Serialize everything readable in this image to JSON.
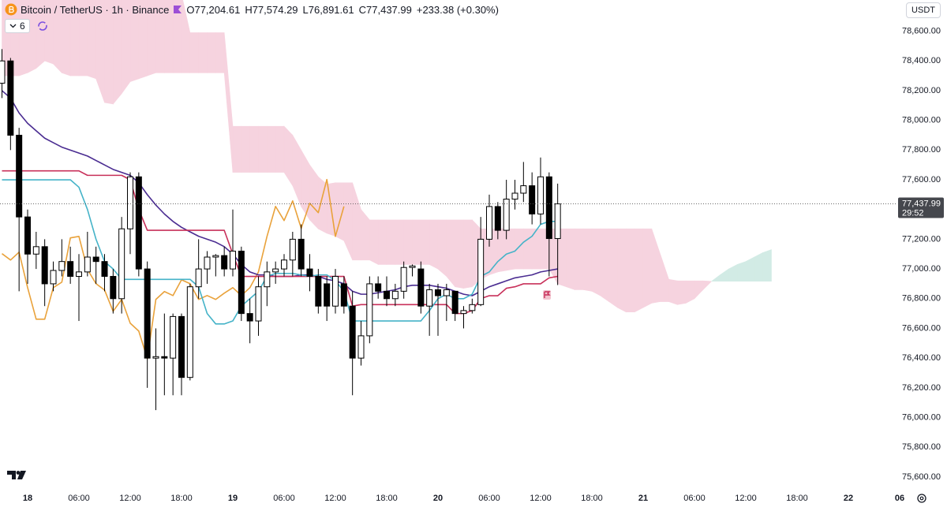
{
  "header": {
    "symbol": "Bitcoin / TetherUS · 1h · Binance",
    "ohlc": [
      "O77,204.61",
      "H77,574.29",
      "L76,891.61",
      "C77,437.99"
    ],
    "change": "+233.38 (+0.30%)",
    "indicator_count": "6",
    "currency": "USDT"
  },
  "chart_data": {
    "type": "candlestick",
    "categories": [
      null,
      null,
      null,
      "18",
      null,
      null,
      null,
      null,
      null,
      "06:00",
      null,
      null,
      null,
      null,
      null,
      "12:00",
      null,
      null,
      null,
      null,
      null,
      "18:00",
      null,
      null,
      null,
      null,
      null,
      "19",
      null,
      null,
      null,
      null,
      null,
      "06:00",
      null,
      null,
      null,
      null,
      null,
      "12:00",
      null,
      null,
      null,
      null,
      null,
      "18:00",
      null,
      null,
      null,
      null,
      null,
      "20",
      null,
      null,
      null,
      null,
      null,
      "06:00",
      null,
      null,
      null,
      null,
      null,
      "12:00",
      null,
      null,
      null,
      null,
      null,
      "18:00",
      null,
      null,
      null,
      null,
      null,
      "21",
      null,
      null,
      null,
      null,
      null,
      "06:00",
      null,
      null,
      null,
      null,
      null,
      "12:00",
      null,
      null,
      null,
      null,
      null,
      "18:00",
      null,
      null,
      null,
      null,
      null,
      "22",
      null,
      null,
      null,
      null,
      null,
      "06"
    ],
    "open": [
      78250,
      78400,
      77900,
      77350,
      77100,
      77150,
      76900,
      76990,
      77050,
      76950,
      76980,
      77080,
      77050,
      76950,
      76800,
      77270,
      77620,
      77000,
      76400,
      76410,
      76400,
      76680,
      76270,
      76880,
      77000,
      77080,
      77090,
      77000,
      77120,
      76700,
      76650,
      76880,
      76980,
      77000,
      77060,
      77200,
      77000,
      76950,
      76900,
      76750,
      76900,
      76750,
      76400,
      76550,
      76900,
      76850,
      76800,
      76850,
      77010,
      77000,
      76750,
      76860,
      76820,
      76850,
      76700,
      76720,
      76760,
      77200,
      77420,
      77260,
      77470,
      77510,
      77560,
      77370,
      77620,
      77204.61,
      null,
      null,
      null,
      null,
      null,
      null,
      null,
      null,
      null,
      null,
      null,
      null,
      null,
      null,
      null,
      null,
      null,
      null,
      null,
      null,
      null,
      null,
      null,
      null,
      null,
      null,
      null,
      null,
      null,
      null,
      null,
      null,
      null,
      null,
      null,
      null,
      null,
      null,
      null,
      null
    ],
    "high": [
      78480,
      78420,
      77950,
      77400,
      77250,
      77200,
      77050,
      77200,
      77150,
      77100,
      77250,
      77150,
      77100,
      77000,
      77350,
      77650,
      77650,
      77050,
      76600,
      76700,
      76700,
      76700,
      76900,
      77200,
      77120,
      77100,
      77150,
      77400,
      77150,
      76800,
      76950,
      77050,
      77050,
      77100,
      77250,
      77300,
      77100,
      77000,
      76950,
      77000,
      76950,
      76850,
      76650,
      76950,
      76950,
      76950,
      76900,
      77050,
      77030,
      77050,
      76900,
      76900,
      76900,
      76850,
      76750,
      76800,
      77350,
      77500,
      77450,
      77600,
      77600,
      77720,
      77650,
      77750,
      77650,
      77574.29,
      null,
      null,
      null,
      null,
      null,
      null,
      null,
      null,
      null,
      null,
      null,
      null,
      null,
      null,
      null,
      null,
      null,
      null,
      null,
      null,
      null,
      null,
      null,
      null,
      null,
      null,
      null,
      null,
      null,
      null,
      null,
      null,
      null,
      null,
      null,
      null,
      null,
      null,
      null,
      null
    ],
    "low": [
      78150,
      77800,
      76850,
      76900,
      77000,
      76750,
      76850,
      76950,
      76900,
      76650,
      76950,
      76900,
      76850,
      76700,
      76700,
      77100,
      76950,
      76200,
      76050,
      76150,
      76150,
      76150,
      76250,
      76800,
      76900,
      76950,
      76950,
      76950,
      76650,
      76500,
      76550,
      76750,
      76900,
      76950,
      76950,
      76950,
      76850,
      76700,
      76650,
      76700,
      76700,
      76150,
      76350,
      76500,
      76800,
      76750,
      76750,
      76800,
      76950,
      76700,
      76550,
      76550,
      76650,
      76650,
      76600,
      76700,
      76750,
      77150,
      77200,
      77200,
      77400,
      77450,
      77300,
      77300,
      76950,
      76891.61,
      null,
      null,
      null,
      null,
      null,
      null,
      null,
      null,
      null,
      null,
      null,
      null,
      null,
      null,
      null,
      null,
      null,
      null,
      null,
      null,
      null,
      null,
      null,
      null,
      null,
      null,
      null,
      null,
      null,
      null,
      null,
      null,
      null,
      null,
      null,
      null,
      null,
      null,
      null,
      null
    ],
    "close": [
      78400,
      77900,
      77350,
      77100,
      77150,
      76900,
      76990,
      77050,
      76950,
      76980,
      77080,
      77050,
      76950,
      76800,
      77270,
      77620,
      77000,
      76400,
      76410,
      76400,
      76680,
      76270,
      76880,
      77000,
      77080,
      77090,
      77000,
      77120,
      76700,
      76650,
      76880,
      76980,
      77000,
      77060,
      77200,
      77000,
      76950,
      76750,
      76750,
      76950,
      76750,
      76400,
      76550,
      76900,
      76850,
      76800,
      76850,
      77010,
      77020,
      76750,
      76860,
      76820,
      76860,
      76700,
      76720,
      76760,
      77200,
      77420,
      77260,
      77470,
      77510,
      77560,
      77370,
      77620,
      77204.61,
      77437.99,
      null,
      null,
      null,
      null,
      null,
      null,
      null,
      null,
      null,
      null,
      null,
      null,
      null,
      null,
      null,
      null,
      null,
      null,
      null,
      null,
      null,
      null,
      null,
      null,
      null,
      null,
      null,
      null,
      null,
      null,
      null,
      null,
      null,
      null,
      null,
      null,
      null,
      null,
      null,
      null
    ],
    "up_color": "#ffffff",
    "down_color": "#000000",
    "cloud": {
      "colors": [
        "#f6d3df",
        "#d2ebe5"
      ],
      "span_a": [
        78300,
        78300,
        78300,
        78320,
        78350,
        78400,
        78380,
        78320,
        78300,
        78300,
        78300,
        78280,
        78120,
        78110,
        78180,
        78260,
        78280,
        78300,
        78320,
        78320,
        78320,
        78320,
        78320,
        78320,
        78320,
        78320,
        78320,
        77650,
        77650,
        77650,
        77650,
        77650,
        77650,
        77650,
        77560,
        77420,
        77330,
        77270,
        77240,
        77220,
        77190,
        77060,
        77060,
        77060,
        77030,
        77030,
        77030,
        77030,
        77030,
        77030,
        77030,
        77000,
        76950,
        76880,
        76870,
        76880,
        76930,
        76960,
        76980,
        76990,
        77000,
        77000,
        77000,
        77000,
        77000,
        76900,
        76880,
        76860,
        76860,
        76850,
        76820,
        76780,
        76740,
        76710,
        76710,
        76740,
        76770,
        76780,
        76780,
        76760,
        76770,
        76800,
        76860,
        76917,
        76960,
        77000,
        77030,
        77050,
        77080,
        77110,
        77130,
        null,
        null,
        null,
        null,
        null,
        null,
        null,
        null,
        null,
        null,
        null,
        null,
        null,
        null,
        null
      ],
      "span_b": [
        78850,
        78850,
        78850,
        78850,
        78850,
        78850,
        78850,
        78850,
        78850,
        78850,
        78850,
        78850,
        78850,
        78850,
        78850,
        78850,
        78850,
        78850,
        78850,
        78850,
        78850,
        78850,
        78590,
        78590,
        78590,
        78590,
        78590,
        77960,
        77960,
        77960,
        77960,
        77960,
        77960,
        77960,
        77900,
        77800,
        77700,
        77620,
        77570,
        77580,
        77580,
        77580,
        77400,
        77330,
        77330,
        77330,
        77330,
        77330,
        77330,
        77330,
        77330,
        77330,
        77330,
        77330,
        77330,
        77330,
        77270,
        77270,
        77270,
        77270,
        77270,
        77270,
        77270,
        77270,
        77270,
        77270,
        77270,
        77270,
        77270,
        77270,
        77270,
        77270,
        77270,
        77270,
        77270,
        77270,
        77270,
        77100,
        76930,
        76920,
        76920,
        76920,
        76920,
        76917,
        76917,
        76917,
        76917,
        76917,
        76917,
        76917,
        76917,
        null,
        null,
        null,
        null,
        null,
        null,
        null,
        null,
        null,
        null,
        null,
        null,
        null,
        null,
        null
      ]
    },
    "lines": [
      {
        "color": "#e9a23b",
        "values": [
          77103,
          77060,
          77113,
          76874,
          76662,
          76662,
          76874,
          76911,
          77209,
          77219,
          76996,
          76901,
          76858,
          76715,
          76795,
          76635,
          76582,
          76396,
          76795,
          76848,
          76821,
          76927,
          76901,
          76795,
          76821,
          76795,
          76837,
          76874,
          76821,
          76874,
          76980,
          77219,
          77421,
          77326,
          77458,
          77273,
          77442,
          77379,
          77602,
          77219,
          77421,
          null,
          null,
          null,
          null,
          null,
          null,
          null,
          null,
          null,
          null,
          null,
          null,
          null,
          null,
          null,
          null,
          null,
          null,
          null,
          null,
          null,
          null,
          null,
          null,
          null,
          null,
          null,
          null,
          null,
          null,
          null,
          null,
          null,
          null,
          null,
          null,
          null,
          null,
          null,
          null,
          null,
          null,
          null,
          null,
          null,
          null,
          null,
          null,
          null,
          null,
          null,
          null,
          null,
          null,
          null,
          null,
          null,
          null,
          null,
          null,
          null,
          null,
          null,
          null,
          null
        ]
      },
      {
        "color": "#4a2c91",
        "values": [
          78200,
          78150,
          78050,
          77980,
          77930,
          77880,
          77850,
          77820,
          77800,
          77780,
          77760,
          77730,
          77700,
          77670,
          77650,
          77630,
          77580,
          77500,
          77430,
          77370,
          77320,
          77280,
          77250,
          77220,
          77200,
          77180,
          77150,
          77100,
          77030,
          76980,
          76960,
          76960,
          76950,
          76950,
          76950,
          76960,
          76960,
          76950,
          76930,
          76920,
          76900,
          76850,
          76830,
          76830,
          76840,
          76850,
          76860,
          76880,
          76890,
          76890,
          76890,
          76880,
          76870,
          76850,
          76830,
          76820,
          76850,
          76880,
          76900,
          76920,
          76940,
          76950,
          76960,
          76980,
          76990,
          77000,
          null,
          null,
          null,
          null,
          null,
          null,
          null,
          null,
          null,
          null,
          null,
          null,
          null,
          null,
          null,
          null,
          null,
          null,
          null,
          null,
          null,
          null,
          null,
          null,
          null,
          null,
          null,
          null,
          null,
          null,
          null,
          null,
          null,
          null,
          null,
          null,
          null,
          null,
          null,
          null
        ]
      },
      {
        "color": "#c8305a",
        "values": [
          77660,
          77660,
          77660,
          77660,
          77660,
          77660,
          77660,
          77660,
          77660,
          77660,
          77630,
          77630,
          77630,
          77630,
          77630,
          77600,
          77400,
          77260,
          77260,
          77260,
          77260,
          77260,
          77260,
          77260,
          77260,
          77260,
          77260,
          77100,
          76950,
          76950,
          76950,
          76950,
          76950,
          76950,
          76950,
          76950,
          76950,
          76950,
          76950,
          76950,
          76950,
          76750,
          76760,
          76760,
          76760,
          76760,
          76760,
          76760,
          76760,
          76760,
          76760,
          76760,
          76760,
          76700,
          76700,
          76720,
          76800,
          76820,
          76820,
          76870,
          76880,
          76900,
          76900,
          76900,
          76940,
          76950,
          null,
          null,
          null,
          null,
          null,
          null,
          null,
          null,
          null,
          null,
          null,
          null,
          null,
          null,
          null,
          null,
          null,
          null,
          null,
          null,
          null,
          null,
          null,
          null,
          null,
          null,
          null,
          null,
          null,
          null,
          null,
          null,
          null,
          null,
          null,
          null,
          null,
          null,
          null,
          null
        ]
      },
      {
        "color": "#45b3c8",
        "values": [
          77600,
          77600,
          77600,
          77600,
          77600,
          77600,
          77600,
          77600,
          77600,
          77550,
          77400,
          77200,
          77050,
          77000,
          76930,
          76930,
          76930,
          76930,
          76930,
          76930,
          76930,
          76930,
          76930,
          76880,
          76700,
          76630,
          76630,
          76650,
          76750,
          76800,
          76850,
          76950,
          76970,
          76970,
          76970,
          76960,
          76950,
          76960,
          76960,
          76920,
          76850,
          76650,
          76650,
          76650,
          76650,
          76650,
          76650,
          76650,
          76650,
          76650,
          76720,
          76800,
          76830,
          76800,
          76800,
          76830,
          76950,
          76980,
          77050,
          77100,
          77120,
          77180,
          77220,
          77300,
          77320,
          77320,
          null,
          null,
          null,
          null,
          null,
          null,
          null,
          null,
          null,
          null,
          null,
          null,
          null,
          null,
          null,
          null,
          null,
          null,
          null,
          null,
          null,
          null,
          null,
          null,
          null,
          null,
          null,
          null,
          null,
          null,
          null,
          null,
          null,
          null,
          null,
          null,
          null,
          null,
          null,
          null
        ]
      }
    ],
    "ylim": [
      75520,
      78810
    ],
    "yticks": [
      {
        "value": 75600,
        "label": "75,600.00"
      },
      {
        "value": 75800,
        "label": "75,800.00"
      },
      {
        "value": 76000,
        "label": "76,000.00"
      },
      {
        "value": 76200,
        "label": "76,200.00"
      },
      {
        "value": 76400,
        "label": "76,400.00"
      },
      {
        "value": 76600,
        "label": "76,600.00"
      },
      {
        "value": 76800,
        "label": "76,800.00"
      },
      {
        "value": 77000,
        "label": "77,000.00"
      },
      {
        "value": 77200,
        "label": "77,200.00"
      },
      {
        "value": 77400,
        "label": "77,400.00"
      },
      {
        "value": 77600,
        "label": "77,600.00"
      },
      {
        "value": 77800,
        "label": "77,800.00"
      },
      {
        "value": 78000,
        "label": "78,000.00"
      },
      {
        "value": 78200,
        "label": "78,200.00"
      },
      {
        "value": 78400,
        "label": "78,400.00"
      },
      {
        "value": 78600,
        "label": "78,600.00"
      }
    ],
    "grid": false,
    "last_price_label": "77,437.99",
    "countdown": "29:52"
  }
}
